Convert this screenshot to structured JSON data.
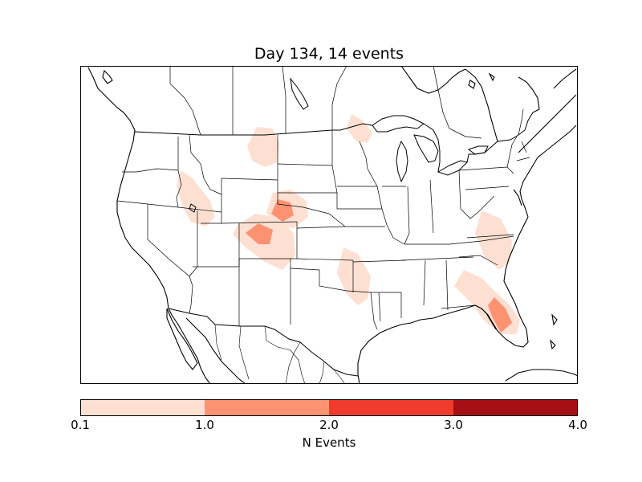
{
  "title": "Day 134, 14 events",
  "colorbar": {
    "label": "N Events",
    "ticks": [
      "0.1",
      "1.0",
      "2.0",
      "3.0",
      "4.0"
    ],
    "bins": [
      {
        "range": "0.1-1.0",
        "color": "#fee0d2"
      },
      {
        "range": "1.0-2.0",
        "color": "#fc9272"
      },
      {
        "range": "2.0-3.0",
        "color": "#ef3b2c"
      },
      {
        "range": "3.0-4.0",
        "color": "#a50f15"
      }
    ]
  },
  "map": {
    "region": "Contiguous United States with Canada and Mexico borders",
    "layers": [
      "coastlines",
      "country-borders",
      "state-borders"
    ],
    "event_regions": [
      {
        "name": "Idaho/Montana",
        "level": "0.1-1.0"
      },
      {
        "name": "Eastern Montana/North Dakota",
        "level": "0.1-1.0"
      },
      {
        "name": "Minnesota/Ontario border",
        "level": "0.1-1.0"
      },
      {
        "name": "Wyoming/Nebraska/Colorado",
        "level": "1.0-2.0"
      },
      {
        "name": "Colorado",
        "level": "1.0-2.0"
      },
      {
        "name": "Oklahoma/Texas",
        "level": "0.1-1.0"
      },
      {
        "name": "Virginia/North Carolina",
        "level": "0.1-1.0"
      },
      {
        "name": "Georgia/Florida",
        "level": "0.1-1.0"
      },
      {
        "name": "Central Florida",
        "level": "1.0-2.0"
      }
    ]
  }
}
